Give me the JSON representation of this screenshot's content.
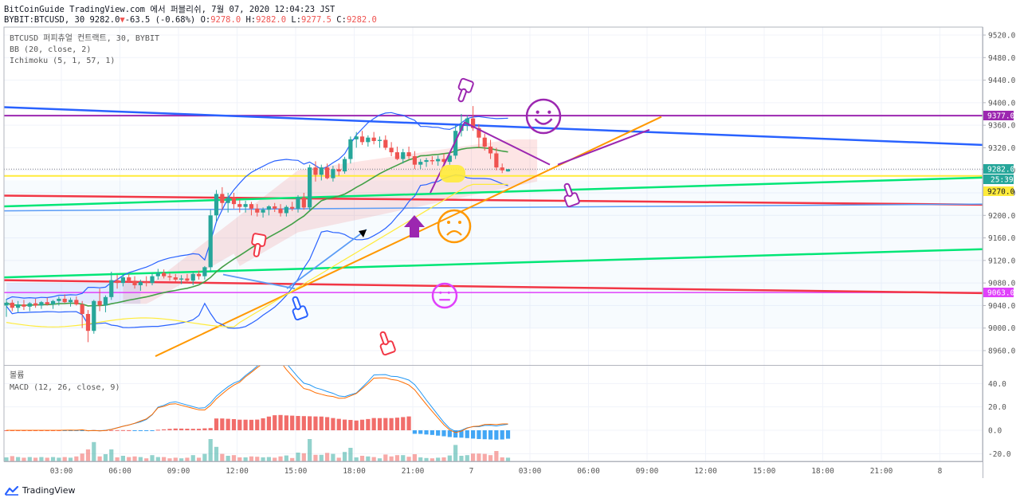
{
  "header": {
    "line1": "BitCoinGuide TradingView.com 에서 퍼블리쉬, 7월 07, 2020 12:04:23 JST",
    "line2_prefix": "BYBIT:BTCUSD, 30 9282.0",
    "change": "-63.5 (-0.68%)",
    "o_label": " O:",
    "o_val": "9278.0",
    "h_label": " H:",
    "h_val": "9282.0",
    "l_label": " L:",
    "l_val": "9277.5",
    "c_label": " C:",
    "c_val": "9282.0"
  },
  "legend": {
    "symbol": "BTCUSD 퍼피츄얼 컨트랙트, 30, BYBIT",
    "bb": "BB (20, close, 2)",
    "ichimoku": "Ichimoku (5, 1, 57, 1)",
    "volume": "볼륨",
    "macd": "MACD (12, 26, close, 9)"
  },
  "badges": {
    "b9377": "9377.0",
    "b9282": "9282.0",
    "bTimer": "25:39",
    "b9270": "9270.0",
    "b9063": "9063.0"
  },
  "footer": {
    "brand": "TradingView"
  },
  "colors": {
    "up": "#26a69a",
    "down": "#ef5350",
    "blue": "#2962ff",
    "purple": "#9c27b0",
    "red": "#f23645",
    "green": "#00e676",
    "orange": "#ff9800",
    "yellow": "#ffeb3b",
    "lightblue": "#5b9cf6",
    "magenta": "#e040fb"
  },
  "chart_data": {
    "type": "candlestick",
    "price_axis_ticks": [
      9520,
      9480,
      9440,
      9400,
      9360,
      9320,
      9280,
      9240,
      9200,
      9160,
      9120,
      9080,
      9040,
      9000,
      8960
    ],
    "macd_axis_ticks": [
      40,
      20,
      0,
      -20
    ],
    "time_ticks": [
      "03:00",
      "06:00",
      "09:00",
      "12:00",
      "15:00",
      "18:00",
      "21:00",
      "7",
      "03:00",
      "06:00",
      "09:00",
      "12:00",
      "15:00",
      "18:00",
      "21:00",
      "8"
    ],
    "candles": [
      [
        9040,
        9052,
        9020,
        9045
      ],
      [
        9045,
        9050,
        9030,
        9036
      ],
      [
        9036,
        9048,
        9028,
        9042
      ],
      [
        9042,
        9050,
        9032,
        9038
      ],
      [
        9038,
        9046,
        9030,
        9044
      ],
      [
        9044,
        9052,
        9036,
        9040
      ],
      [
        9040,
        9048,
        9034,
        9046
      ],
      [
        9046,
        9054,
        9040,
        9042
      ],
      [
        9042,
        9050,
        9034,
        9048
      ],
      [
        9048,
        9056,
        9040,
        9052
      ],
      [
        9052,
        9060,
        9044,
        9046
      ],
      [
        9046,
        9054,
        9038,
        9050
      ],
      [
        9050,
        9056,
        9040,
        9042
      ],
      [
        9042,
        9048,
        9000,
        9025
      ],
      [
        9025,
        9032,
        8975,
        8995
      ],
      [
        8995,
        9050,
        8990,
        9048
      ],
      [
        9048,
        9070,
        9030,
        9040
      ],
      [
        9040,
        9058,
        9028,
        9055
      ],
      [
        9055,
        9100,
        9050,
        9085
      ],
      [
        9085,
        9095,
        9070,
        9080
      ],
      [
        9080,
        9095,
        9074,
        9090
      ],
      [
        9090,
        9096,
        9080,
        9084
      ],
      [
        9084,
        9092,
        9070,
        9076
      ],
      [
        9076,
        9086,
        9066,
        9082
      ],
      [
        9082,
        9092,
        9074,
        9080
      ],
      [
        9080,
        9098,
        9076,
        9092
      ],
      [
        9092,
        9105,
        9086,
        9098
      ],
      [
        9098,
        9104,
        9088,
        9092
      ],
      [
        9092,
        9098,
        9084,
        9090
      ],
      [
        9090,
        9096,
        9082,
        9086
      ],
      [
        9086,
        9094,
        9078,
        9088
      ],
      [
        9088,
        9096,
        9080,
        9084
      ],
      [
        9084,
        9100,
        9076,
        9096
      ],
      [
        9096,
        9102,
        9086,
        9092
      ],
      [
        9092,
        9110,
        9086,
        9108
      ],
      [
        9108,
        9210,
        9100,
        9200
      ],
      [
        9200,
        9245,
        9190,
        9238
      ],
      [
        9238,
        9250,
        9210,
        9222
      ],
      [
        9222,
        9240,
        9205,
        9232
      ],
      [
        9232,
        9240,
        9212,
        9220
      ],
      [
        9220,
        9228,
        9205,
        9215
      ],
      [
        9215,
        9226,
        9205,
        9220
      ],
      [
        9220,
        9224,
        9200,
        9212
      ],
      [
        9212,
        9220,
        9198,
        9205
      ],
      [
        9205,
        9214,
        9196,
        9210
      ],
      [
        9210,
        9218,
        9200,
        9216
      ],
      [
        9216,
        9222,
        9206,
        9212
      ],
      [
        9212,
        9220,
        9198,
        9204
      ],
      [
        9204,
        9218,
        9198,
        9215
      ],
      [
        9215,
        9224,
        9208,
        9212
      ],
      [
        9212,
        9236,
        9205,
        9232
      ],
      [
        9232,
        9240,
        9210,
        9214
      ],
      [
        9214,
        9290,
        9208,
        9285
      ],
      [
        9285,
        9296,
        9260,
        9272
      ],
      [
        9272,
        9290,
        9262,
        9285
      ],
      [
        9285,
        9292,
        9264,
        9266
      ],
      [
        9266,
        9288,
        9260,
        9282
      ],
      [
        9282,
        9292,
        9270,
        9278
      ],
      [
        9278,
        9304,
        9274,
        9300
      ],
      [
        9300,
        9340,
        9292,
        9335
      ],
      [
        9335,
        9348,
        9320,
        9340
      ],
      [
        9340,
        9350,
        9325,
        9330
      ],
      [
        9330,
        9342,
        9322,
        9338
      ],
      [
        9338,
        9348,
        9326,
        9332
      ],
      [
        9332,
        9340,
        9320,
        9334
      ],
      [
        9334,
        9342,
        9316,
        9320
      ],
      [
        9320,
        9330,
        9305,
        9312
      ],
      [
        9312,
        9322,
        9298,
        9300
      ],
      [
        9300,
        9318,
        9292,
        9312
      ],
      [
        9312,
        9322,
        9300,
        9305
      ],
      [
        9305,
        9314,
        9282,
        9290
      ],
      [
        9290,
        9300,
        9282,
        9295
      ],
      [
        9295,
        9302,
        9286,
        9298
      ],
      [
        9298,
        9305,
        9290,
        9296
      ],
      [
        9296,
        9306,
        9288,
        9300
      ],
      [
        9300,
        9310,
        9290,
        9295
      ],
      [
        9295,
        9312,
        9290,
        9306
      ],
      [
        9306,
        9360,
        9300,
        9350
      ],
      [
        9350,
        9380,
        9340,
        9360
      ],
      [
        9360,
        9378,
        9350,
        9372
      ],
      [
        9372,
        9394,
        9350,
        9355
      ],
      [
        9355,
        9362,
        9320,
        9338
      ],
      [
        9338,
        9345,
        9315,
        9322
      ],
      [
        9322,
        9334,
        9300,
        9310
      ],
      [
        9310,
        9320,
        9280,
        9285
      ],
      [
        9285,
        9292,
        9275,
        9280
      ],
      [
        9278,
        9282,
        9277.5,
        9282
      ]
    ]
  }
}
